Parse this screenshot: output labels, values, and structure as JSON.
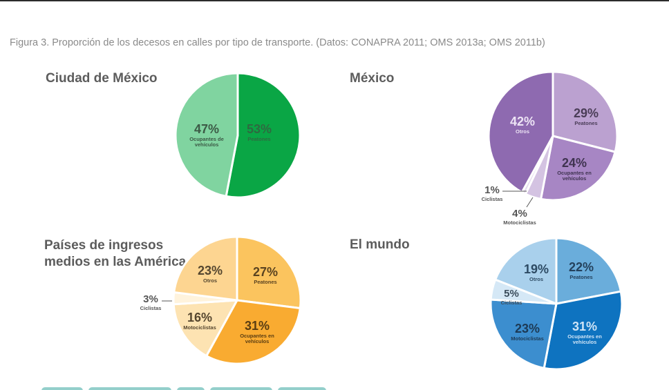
{
  "caption": "Figura 3.  Proporción de los decesos en calles por tipo de transporte. (Datos: CONAPRA 2011; OMS 2013a; OMS 2011b)",
  "chart_data": [
    {
      "type": "pie",
      "title": "Ciudad de México",
      "slices": [
        {
          "label": "Peatones",
          "value": 53,
          "display": "53%",
          "color": "#0aa645",
          "label_color": "#2e6a40"
        },
        {
          "label": "Ocupantes de vehículos",
          "value": 47,
          "display": "47%",
          "color": "#80d4a0",
          "label_color": "#3c5a46"
        }
      ]
    },
    {
      "type": "pie",
      "title": "México",
      "slices": [
        {
          "label": "Peatones",
          "value": 29,
          "display": "29%",
          "color": "#bba1d0",
          "label_color": "#4a3d57"
        },
        {
          "label": "Ocupantes en vehículos",
          "value": 24,
          "display": "24%",
          "color": "#a786c4",
          "label_color": "#3f3350"
        },
        {
          "label": "Motociclistas",
          "value": 4,
          "display": "4%",
          "color": "#d4c3e2",
          "label_color": "#555555"
        },
        {
          "label": "Ciclistas",
          "value": 1,
          "display": "1%",
          "color": "#e6dcef",
          "label_color": "#555555"
        },
        {
          "label": "Otros",
          "value": 42,
          "display": "42%",
          "color": "#8e6ab0",
          "label_color": "#ede4f5"
        }
      ]
    },
    {
      "type": "pie",
      "title": "Países de ingresos medios en las Américas",
      "title_lines": [
        "Países de ingresos",
        "medios en las Américas"
      ],
      "slices": [
        {
          "label": "Peatones",
          "value": 27,
          "display": "27%",
          "color": "#fbc45e",
          "label_color": "#5a4320"
        },
        {
          "label": "Ocupantes en vehículos",
          "value": 31,
          "display": "31%",
          "color": "#f9ab31",
          "label_color": "#5a3d12"
        },
        {
          "label": "Motociclistas",
          "value": 16,
          "display": "16%",
          "color": "#fde3b2",
          "label_color": "#55462f"
        },
        {
          "label": "Ciclistas",
          "value": 3,
          "display": "3%",
          "color": "#fff3dc",
          "label_color": "#555555"
        },
        {
          "label": "Otros",
          "value": 23,
          "display": "23%",
          "color": "#fdd591",
          "label_color": "#55462f"
        }
      ]
    },
    {
      "type": "pie",
      "title": "El mundo",
      "slices": [
        {
          "label": "Peatones",
          "value": 22,
          "display": "22%",
          "color": "#6aaddb",
          "label_color": "#24415c"
        },
        {
          "label": "Ocupantes en vehículos",
          "value": 31,
          "display": "31%",
          "color": "#0e73c0",
          "label_color": "#cfe4f6"
        },
        {
          "label": "Motociclistas",
          "value": 23,
          "display": "23%",
          "color": "#3c8ecf",
          "label_color": "#1d3a55"
        },
        {
          "label": "Ciclistas",
          "value": 5,
          "display": "5%",
          "color": "#d5e8f6",
          "label_color": "#3b4d5c"
        },
        {
          "label": "Otros",
          "value": 19,
          "display": "19%",
          "color": "#a9d0ec",
          "label_color": "#2d4a63"
        }
      ]
    }
  ]
}
